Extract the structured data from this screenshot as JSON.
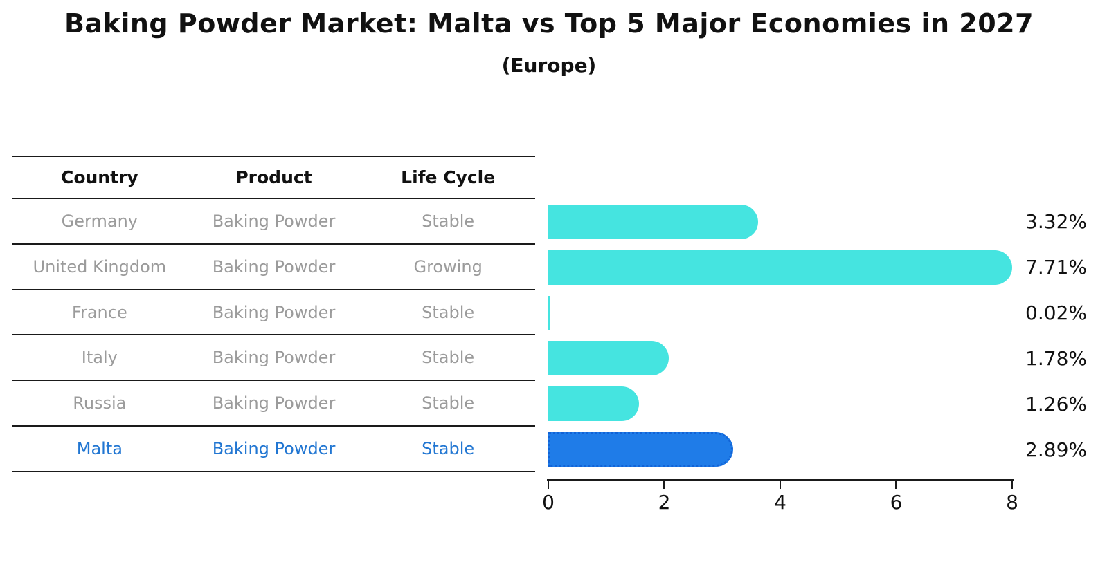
{
  "header": {
    "title": "Baking Powder Market: Malta vs Top 5 Major Economies in 2027",
    "subtitle": "(Europe)"
  },
  "table": {
    "headers": [
      "Country",
      "Product",
      "Life Cycle"
    ],
    "rows": [
      {
        "country": "Germany",
        "product": "Baking Powder",
        "life_cycle": "Stable",
        "highlight": false
      },
      {
        "country": "United Kingdom",
        "product": "Baking Powder",
        "life_cycle": "Growing",
        "highlight": false
      },
      {
        "country": "France",
        "product": "Baking Powder",
        "life_cycle": "Stable",
        "highlight": false
      },
      {
        "country": "Italy",
        "product": "Baking Powder",
        "life_cycle": "Stable",
        "highlight": false
      },
      {
        "country": "Russia",
        "product": "Baking Powder",
        "life_cycle": "Stable",
        "highlight": true
      }
    ],
    "highlight_row": {
      "country": "Malta",
      "product": "Baking Powder",
      "life_cycle": "Stable"
    },
    "text_color": "#9b9b9b",
    "highlight_text_color": "#2176d2",
    "line_color": "#1a1a1a"
  },
  "chart_data": {
    "type": "bar",
    "orientation": "horizontal",
    "title": "Baking Powder Market: Malta vs Top 5 Major Economies in 2027",
    "subtitle": "(Europe)",
    "categories": [
      "Germany",
      "United Kingdom",
      "France",
      "Italy",
      "Russia",
      "Malta"
    ],
    "values": [
      3.32,
      7.71,
      0.02,
      1.78,
      1.26,
      2.89
    ],
    "value_labels": [
      "3.32%",
      "7.71%",
      "0.02%",
      "1.78%",
      "1.26%",
      "2.89%"
    ],
    "xlim": [
      0,
      8
    ],
    "x_ticks": [
      0,
      2,
      4,
      6,
      8
    ],
    "grid": false,
    "legend": "none",
    "bar_color": "#45e4e0",
    "highlight_bar_color": "#1f7ce8",
    "highlight_border_color": "#1263d6",
    "highlight_index": 5,
    "axis_color": "#1a1a1a",
    "value_label_color": "#111111"
  }
}
